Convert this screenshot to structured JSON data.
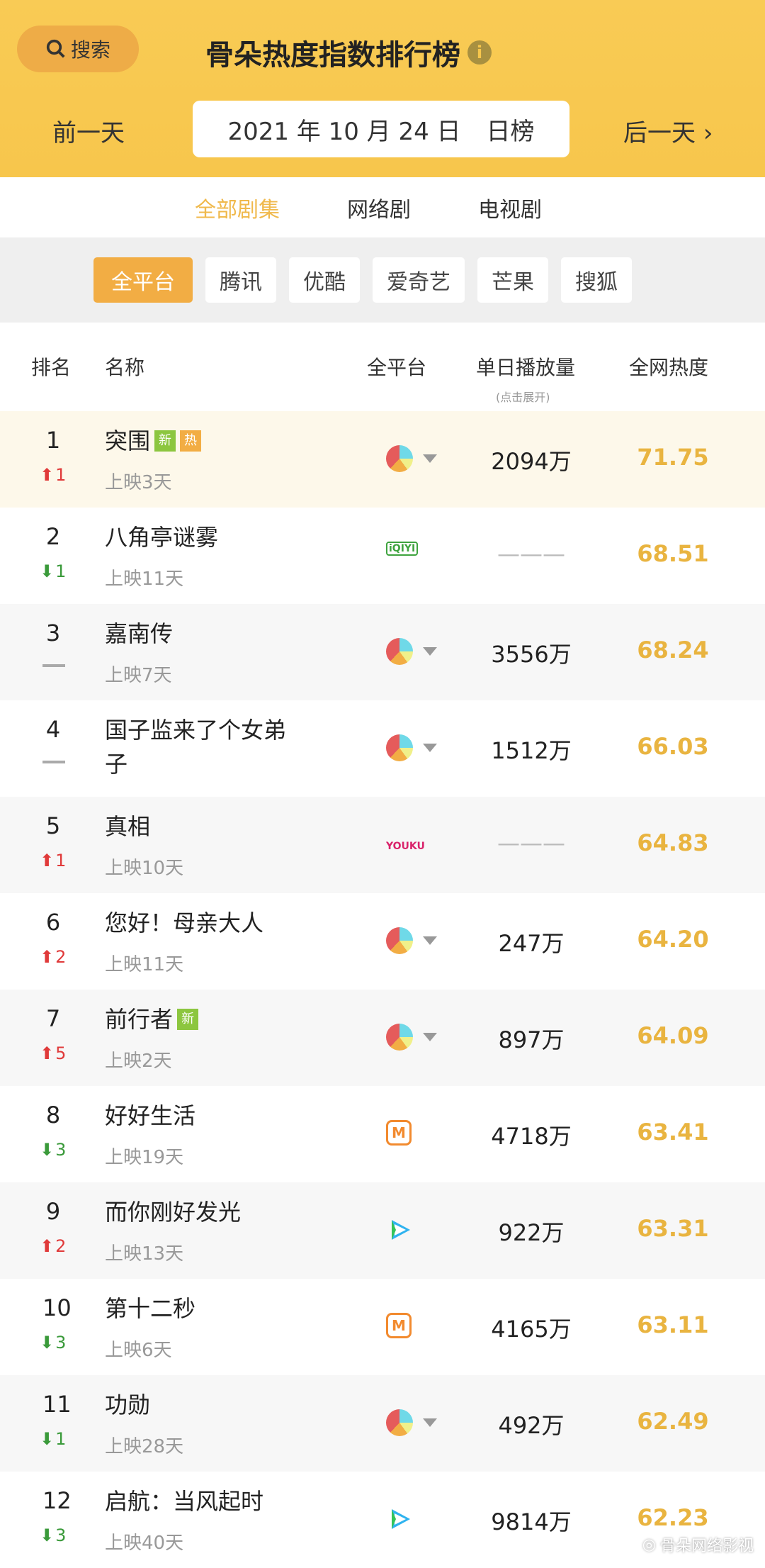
{
  "header": {
    "search_label": "搜索",
    "title": "骨朵热度指数排行榜",
    "prev": "前一天",
    "date": "2021 年 10 月 24 日",
    "period": "日榜",
    "next": "后一天"
  },
  "tabs": [
    {
      "label": "全部剧集",
      "active": true
    },
    {
      "label": "网络剧"
    },
    {
      "label": "电视剧"
    }
  ],
  "platforms": [
    {
      "label": "全平台",
      "active": true
    },
    {
      "label": "腾讯"
    },
    {
      "label": "优酷"
    },
    {
      "label": "爱奇艺"
    },
    {
      "label": "芒果"
    },
    {
      "label": "搜狐"
    }
  ],
  "columns": {
    "rank": "排名",
    "name": "名称",
    "platform": "全平台",
    "views": "单日播放量",
    "views_hint": "(点击展开)",
    "heat": "全网热度"
  },
  "colors": {
    "accent": "#f2ad44",
    "heat": "#e9b440",
    "up": "#e03a3a",
    "down": "#3a9a3a"
  },
  "rows": [
    {
      "rank": "1",
      "change": "1",
      "dir": "up",
      "name": "突围",
      "tags": [
        "新",
        "热"
      ],
      "days": "上映3天",
      "platform": "all",
      "views": "2094万",
      "heat": "71.75"
    },
    {
      "rank": "2",
      "change": "1",
      "dir": "down",
      "name": "八角亭谜雾",
      "days": "上映11天",
      "platform": "iqiyi",
      "platform_text": "iQIYI",
      "views": "———",
      "heat": "68.51"
    },
    {
      "rank": "3",
      "change": "",
      "dir": "flat",
      "name": "嘉南传",
      "days": "上映7天",
      "platform": "all",
      "views": "3556万",
      "heat": "68.24"
    },
    {
      "rank": "4",
      "change": "",
      "dir": "flat",
      "name": "国子监来了个女弟子",
      "days": "",
      "platform": "all",
      "views": "1512万",
      "heat": "66.03"
    },
    {
      "rank": "5",
      "change": "1",
      "dir": "up",
      "name": "真相",
      "days": "上映10天",
      "platform": "youku",
      "platform_text": "YOUKU",
      "views": "———",
      "heat": "64.83"
    },
    {
      "rank": "6",
      "change": "2",
      "dir": "up",
      "name": "您好！母亲大人",
      "days": "上映11天",
      "platform": "all",
      "views": "247万",
      "heat": "64.20"
    },
    {
      "rank": "7",
      "change": "5",
      "dir": "up",
      "name": "前行者",
      "tags": [
        "新"
      ],
      "days": "上映2天",
      "platform": "all",
      "views": "897万",
      "heat": "64.09"
    },
    {
      "rank": "8",
      "change": "3",
      "dir": "down",
      "name": "好好生活",
      "days": "上映19天",
      "platform": "mango",
      "views": "4718万",
      "heat": "63.41"
    },
    {
      "rank": "9",
      "change": "2",
      "dir": "up",
      "name": "而你刚好发光",
      "days": "上映13天",
      "platform": "tencent",
      "views": "922万",
      "heat": "63.31"
    },
    {
      "rank": "10",
      "change": "3",
      "dir": "down",
      "name": "第十二秒",
      "days": "上映6天",
      "platform": "mango",
      "views": "4165万",
      "heat": "63.11"
    },
    {
      "rank": "11",
      "change": "1",
      "dir": "down",
      "name": "功勋",
      "days": "上映28天",
      "platform": "all",
      "views": "492万",
      "heat": "62.49"
    },
    {
      "rank": "12",
      "change": "3",
      "dir": "down",
      "name": "启航：当风起时",
      "days": "上映40天",
      "platform": "tencent",
      "views": "9814万",
      "heat": "62.23"
    }
  ],
  "watermark": "骨朵网络影视"
}
